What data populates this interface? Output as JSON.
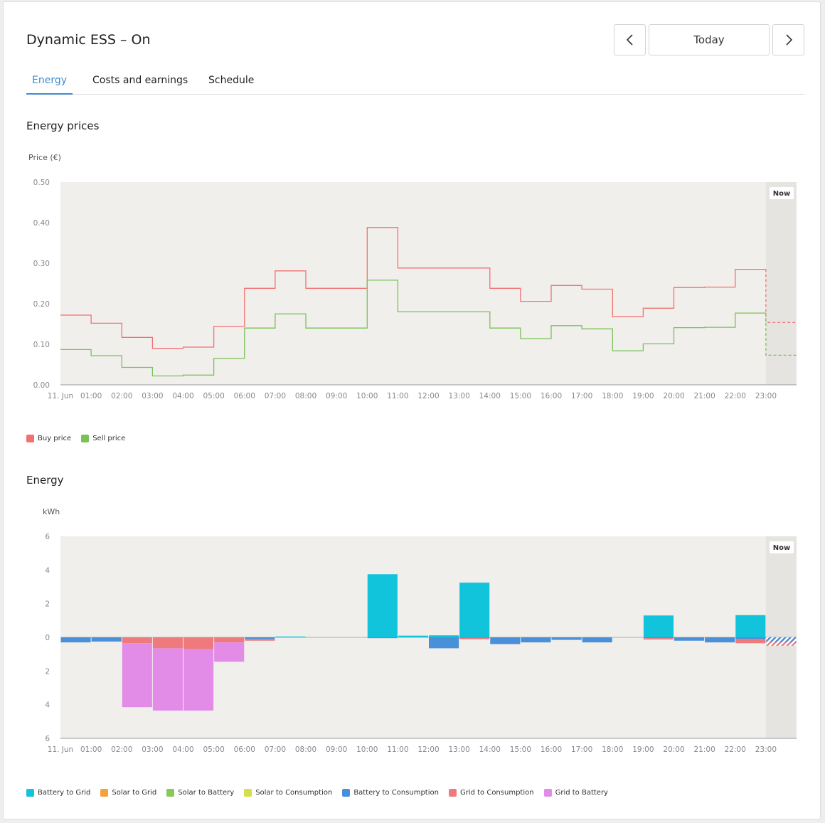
{
  "header": {
    "title": "Dynamic ESS – On",
    "date_label": "Today",
    "prev_icon": "chevron-left-icon",
    "next_icon": "chevron-right-icon"
  },
  "tabs": [
    {
      "label": "Energy",
      "active": true
    },
    {
      "label": "Costs and earnings",
      "active": false
    },
    {
      "label": "Schedule",
      "active": false
    }
  ],
  "sections": {
    "prices_title": "Energy prices",
    "energy_title": "Energy"
  },
  "now_label": "Now",
  "colors": {
    "buy": "#f27070",
    "sell": "#78c257",
    "battery_to_grid": "#12c3dc",
    "solar_to_grid": "#f5a23a",
    "solar_to_battery": "#8ac85a",
    "solar_to_consumption": "#d4df4a",
    "battery_to_consumption": "#4a90d9",
    "grid_to_consumption": "#ef7a7e",
    "grid_to_battery": "#e28ce8"
  },
  "chart_data": [
    {
      "type": "line",
      "step": true,
      "title": "Energy prices",
      "ylabel": "Price (€)",
      "ylim": [
        0,
        0.5
      ],
      "yticks": [
        "0.00",
        "0.10",
        "0.20",
        "0.30",
        "0.40",
        "0.50"
      ],
      "x": [
        "11. Jun",
        "01:00",
        "02:00",
        "03:00",
        "04:00",
        "05:00",
        "06:00",
        "07:00",
        "08:00",
        "09:00",
        "10:00",
        "11:00",
        "12:00",
        "13:00",
        "14:00",
        "15:00",
        "16:00",
        "17:00",
        "18:00",
        "19:00",
        "20:00",
        "21:00",
        "22:00",
        "23:00"
      ],
      "now_hour": 23,
      "legend_placement": "bottom-left",
      "series": [
        {
          "name": "Buy price",
          "values": [
            0.172,
            0.152,
            0.117,
            0.09,
            0.093,
            0.144,
            0.238,
            0.281,
            0.238,
            0.238,
            0.388,
            0.288,
            0.288,
            0.288,
            0.238,
            0.206,
            0.245,
            0.236,
            0.168,
            0.189,
            0.24,
            0.241,
            0.285,
            0.154
          ]
        },
        {
          "name": "Sell price",
          "values": [
            0.087,
            0.072,
            0.043,
            0.022,
            0.024,
            0.065,
            0.14,
            0.175,
            0.14,
            0.14,
            0.258,
            0.18,
            0.18,
            0.18,
            0.14,
            0.114,
            0.146,
            0.138,
            0.084,
            0.101,
            0.141,
            0.142,
            0.177,
            0.073
          ]
        }
      ]
    },
    {
      "type": "bar",
      "stacked": true,
      "title": "Energy",
      "ylabel": "kWh",
      "ylim": [
        -6,
        6
      ],
      "yticks": [
        "6",
        "4",
        "2",
        "0",
        "2",
        "4",
        "6"
      ],
      "x": [
        "11. Jun",
        "01:00",
        "02:00",
        "03:00",
        "04:00",
        "05:00",
        "06:00",
        "07:00",
        "08:00",
        "09:00",
        "10:00",
        "11:00",
        "12:00",
        "13:00",
        "14:00",
        "15:00",
        "16:00",
        "17:00",
        "18:00",
        "19:00",
        "20:00",
        "21:00",
        "22:00",
        "23:00"
      ],
      "now_hour": 23,
      "legend_placement": "bottom-left",
      "series": [
        {
          "name": "Battery to Grid",
          "key": "battery_to_grid",
          "values": [
            0,
            0,
            0,
            0,
            0,
            0,
            0,
            0.05,
            0,
            0,
            3.75,
            0.1,
            0.12,
            3.25,
            0,
            0,
            0,
            0,
            0,
            1.3,
            0,
            0,
            1.32,
            0
          ]
        },
        {
          "name": "Solar to Grid",
          "key": "solar_to_grid",
          "values": [
            0,
            0,
            0,
            0,
            0,
            0,
            0,
            0,
            0,
            0,
            0,
            0,
            0,
            0,
            0,
            0,
            0,
            0,
            0,
            0,
            0,
            0,
            0,
            0
          ]
        },
        {
          "name": "Solar to Battery",
          "key": "solar_to_battery",
          "values": [
            0,
            0,
            0,
            0,
            0,
            0,
            0,
            0,
            0,
            0,
            0,
            0,
            0,
            0,
            0,
            0,
            0,
            0,
            0,
            0,
            0,
            0,
            0,
            0
          ]
        },
        {
          "name": "Solar to Consumption",
          "key": "solar_to_consumption",
          "values": [
            0,
            0,
            0,
            0,
            0,
            0,
            0,
            0,
            0,
            0,
            0,
            0,
            0,
            0,
            0,
            0,
            0,
            0,
            0,
            0,
            0,
            0,
            0,
            0
          ]
        },
        {
          "name": "Battery to Consumption",
          "key": "battery_to_consumption",
          "values": [
            -0.3,
            -0.25,
            0,
            0,
            0,
            0,
            -0.1,
            0,
            0,
            0,
            -0.05,
            0,
            -0.65,
            -0.03,
            -0.4,
            -0.3,
            -0.15,
            -0.3,
            0,
            -0.05,
            -0.2,
            -0.3,
            -0.1,
            -0.3
          ]
        },
        {
          "name": "Grid to Consumption",
          "key": "grid_to_consumption",
          "values": [
            0,
            0,
            -0.35,
            -0.65,
            -0.7,
            -0.3,
            -0.1,
            0,
            0,
            0,
            0,
            0,
            0,
            -0.08,
            0,
            0,
            0,
            0,
            0,
            -0.08,
            0,
            0,
            -0.25,
            -0.2
          ]
        },
        {
          "name": "Grid to Battery",
          "key": "grid_to_battery",
          "values": [
            0,
            0,
            -3.8,
            -3.7,
            -3.65,
            -1.15,
            0,
            0,
            0,
            0,
            0,
            0,
            0,
            0,
            0,
            0,
            0,
            0,
            0,
            0,
            0,
            0,
            0,
            0
          ]
        }
      ]
    }
  ]
}
